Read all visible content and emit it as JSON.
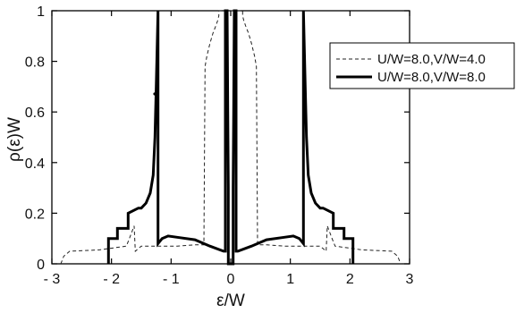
{
  "chart_data": {
    "type": "line",
    "title": "",
    "xlabel": "ε/W",
    "ylabel": "ρ(ε)W",
    "xlim": [
      -3,
      3
    ],
    "ylim": [
      0,
      1
    ],
    "x_ticks": [
      -3,
      -2,
      -1,
      0,
      1,
      2,
      3
    ],
    "x_tick_labels": [
      "- 3",
      "- 2",
      "- 1",
      "0",
      "1",
      "2",
      "3"
    ],
    "y_ticks": [
      0,
      0.2,
      0.4,
      0.6,
      0.8,
      1
    ],
    "y_tick_labels": [
      "0",
      "0.2",
      "0.4",
      "0.6",
      "0.8",
      "1"
    ],
    "grid": false,
    "legend_position": "top-right",
    "series": [
      {
        "name": "U/W=8.0,V/W=4.0",
        "style": "dashed",
        "color": "#222222",
        "x": [
          -2.85,
          -2.8,
          -2.7,
          -2.2,
          -1.75,
          -1.7,
          -1.62,
          -1.6,
          -1.55,
          -1.5,
          -1.2,
          -0.9,
          -0.6,
          -0.45,
          -0.43,
          -0.4,
          -0.35,
          -0.3,
          -0.25,
          -0.22,
          -0.2,
          -0.2,
          0.2,
          0.2,
          0.22,
          0.25,
          0.3,
          0.35,
          0.4,
          0.43,
          0.45,
          0.6,
          0.9,
          1.2,
          1.5,
          1.55,
          1.6,
          1.62,
          1.7,
          1.75,
          2.2,
          2.7,
          2.8,
          2.85
        ],
        "y": [
          0,
          0.03,
          0.05,
          0.055,
          0.07,
          0.1,
          0.15,
          0.05,
          0.06,
          0.07,
          0.07,
          0.07,
          0.075,
          0.075,
          0.78,
          0.82,
          0.87,
          0.91,
          0.94,
          0.96,
          0.98,
          1.0,
          1.0,
          0.98,
          0.96,
          0.94,
          0.91,
          0.87,
          0.82,
          0.78,
          0.075,
          0.075,
          0.07,
          0.07,
          0.07,
          0.06,
          0.05,
          0.15,
          0.1,
          0.07,
          0.055,
          0.05,
          0.03,
          0
        ]
      },
      {
        "name": "U/W=8.0,V/W=8.0",
        "style": "solid",
        "color": "#000000",
        "x": [
          -2.05,
          -2.05,
          -1.9,
          -1.9,
          -1.72,
          -1.72,
          -1.55,
          -1.5,
          -1.42,
          -1.35,
          -1.3,
          -1.27,
          -1.25,
          -1.22,
          -1.22,
          -1.22,
          -1.15,
          -1.05,
          -0.9,
          -0.6,
          -0.35,
          -0.12,
          -0.09,
          -0.09,
          -0.06,
          -0.05,
          -0.04,
          -0.04,
          0.04,
          0.04,
          0.05,
          0.06,
          0.09,
          0.09,
          0.12,
          0.35,
          0.6,
          0.9,
          1.05,
          1.15,
          1.22,
          1.22,
          1.22,
          1.25,
          1.27,
          1.3,
          1.35,
          1.42,
          1.5,
          1.55,
          1.72,
          1.72,
          1.9,
          1.9,
          2.05,
          2.05
        ],
        "y": [
          0,
          0.1,
          0.1,
          0.14,
          0.14,
          0.2,
          0.22,
          0.22,
          0.24,
          0.28,
          0.35,
          0.5,
          0.7,
          1.0,
          1.0,
          0.08,
          0.1,
          0.11,
          0.105,
          0.095,
          0.07,
          0.05,
          0.05,
          1.0,
          1.0,
          0.6,
          0.3,
          0,
          0,
          0.3,
          0.6,
          1.0,
          1.0,
          0.05,
          0.05,
          0.07,
          0.095,
          0.105,
          0.11,
          0.1,
          0.08,
          1.0,
          1.0,
          0.7,
          0.5,
          0.35,
          0.28,
          0.24,
          0.22,
          0.22,
          0.2,
          0.14,
          0.14,
          0.1,
          0.1,
          0
        ]
      }
    ]
  }
}
